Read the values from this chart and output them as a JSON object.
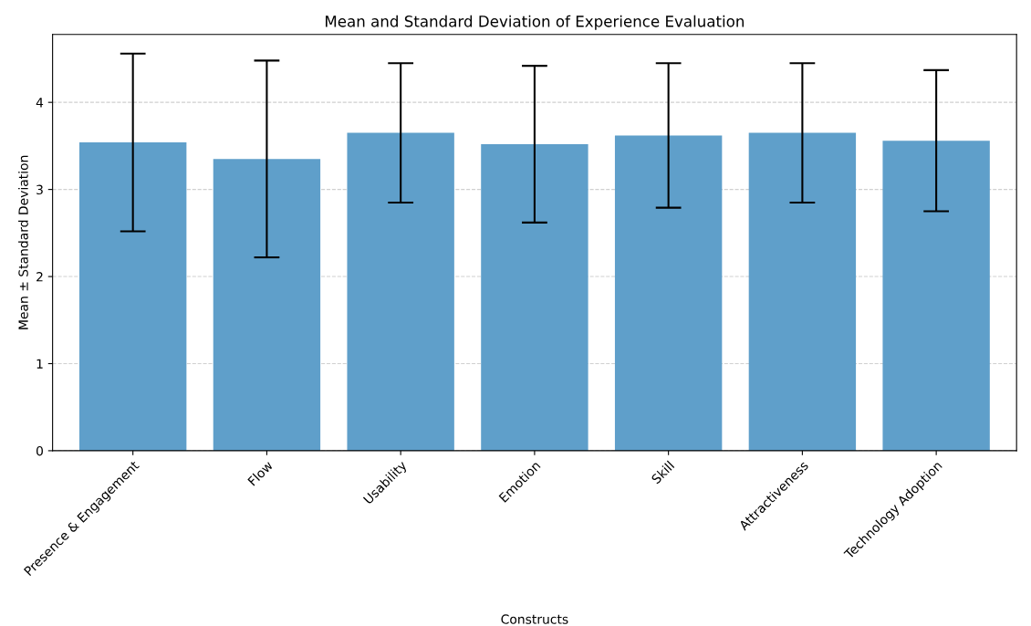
{
  "chart_data": {
    "type": "bar",
    "title": "Mean and Standard Deviation of Experience Evaluation",
    "xlabel": "Constructs",
    "ylabel": "Mean ± Standard Deviation",
    "categories": [
      "Presence & Engagement",
      "Flow",
      "Usability",
      "Emotion",
      "Skill",
      "Attractiveness",
      "Technology Adoption"
    ],
    "values": [
      3.54,
      3.35,
      3.65,
      3.52,
      3.62,
      3.65,
      3.56
    ],
    "errors": [
      1.02,
      1.13,
      0.8,
      0.9,
      0.83,
      0.8,
      0.81
    ],
    "color": "#5f9fca",
    "ylim": [
      0,
      4.78
    ],
    "yticks": [
      0,
      1,
      2,
      3,
      4
    ],
    "grid": "y"
  }
}
